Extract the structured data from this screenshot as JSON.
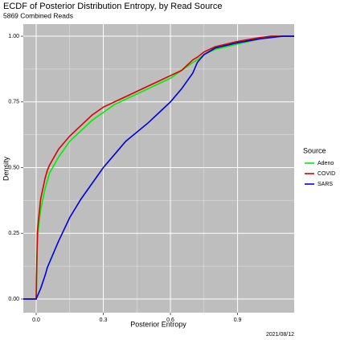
{
  "chart_data": {
    "type": "line",
    "title": "ECDF of Posterior Distribution Entropy, by Read Source",
    "subtitle": "5869 Combined Reads",
    "x_label": "Posterior Entropy",
    "y_label": "Density",
    "caption": "2021/08/12",
    "legend_title": "Source",
    "legend_position": "right",
    "grid": true,
    "x": [
      -0.0575,
      0,
      0.005,
      0.01,
      0.02,
      0.04,
      0.05,
      0.06,
      0.1,
      0.15,
      0.2,
      0.25,
      0.3,
      0.35,
      0.4,
      0.5,
      0.55,
      0.6,
      0.65,
      0.7,
      0.72,
      0.75,
      0.8,
      0.9,
      1.0,
      1.05,
      1.1,
      1.153
    ],
    "series": [
      {
        "name": "Adeno",
        "color": "#00ee00",
        "values": [
          0,
          0,
          0.2,
          0.27,
          0.34,
          0.42,
          0.45,
          0.48,
          0.54,
          0.6,
          0.64,
          0.68,
          0.71,
          0.74,
          0.76,
          0.8,
          0.82,
          0.84,
          0.87,
          0.9,
          0.91,
          0.93,
          0.95,
          0.97,
          0.99,
          1,
          1,
          1
        ]
      },
      {
        "name": "COVID",
        "color": "#dd0000",
        "values": [
          0,
          0,
          0.25,
          0.3,
          0.38,
          0.46,
          0.49,
          0.51,
          0.57,
          0.62,
          0.66,
          0.7,
          0.73,
          0.75,
          0.77,
          0.81,
          0.83,
          0.85,
          0.87,
          0.91,
          0.92,
          0.94,
          0.96,
          0.98,
          0.995,
          1,
          1,
          1
        ]
      },
      {
        "name": "SARS",
        "color": "#0000dd",
        "values": [
          0,
          0,
          0.01,
          0.02,
          0.04,
          0.09,
          0.12,
          0.14,
          0.22,
          0.31,
          0.38,
          0.44,
          0.5,
          0.55,
          0.6,
          0.67,
          0.71,
          0.75,
          0.8,
          0.86,
          0.9,
          0.93,
          0.955,
          0.975,
          0.99,
          0.995,
          1,
          1
        ]
      }
    ],
    "xlim": [
      -0.0575,
      1.153
    ],
    "ylim": [
      -0.052,
      1.046
    ],
    "xticks": [
      {
        "value": 0,
        "label": "0.0"
      },
      0.3,
      0.6,
      0.9
    ],
    "yticks": [
      {
        "value": 0,
        "label": "0.00"
      },
      {
        "value": 0.25,
        "label": "0.25"
      },
      {
        "value": 0.5,
        "label": "0.50"
      },
      {
        "value": 0.75,
        "label": "0.75"
      },
      {
        "value": 1,
        "label": "1.00"
      }
    ]
  }
}
